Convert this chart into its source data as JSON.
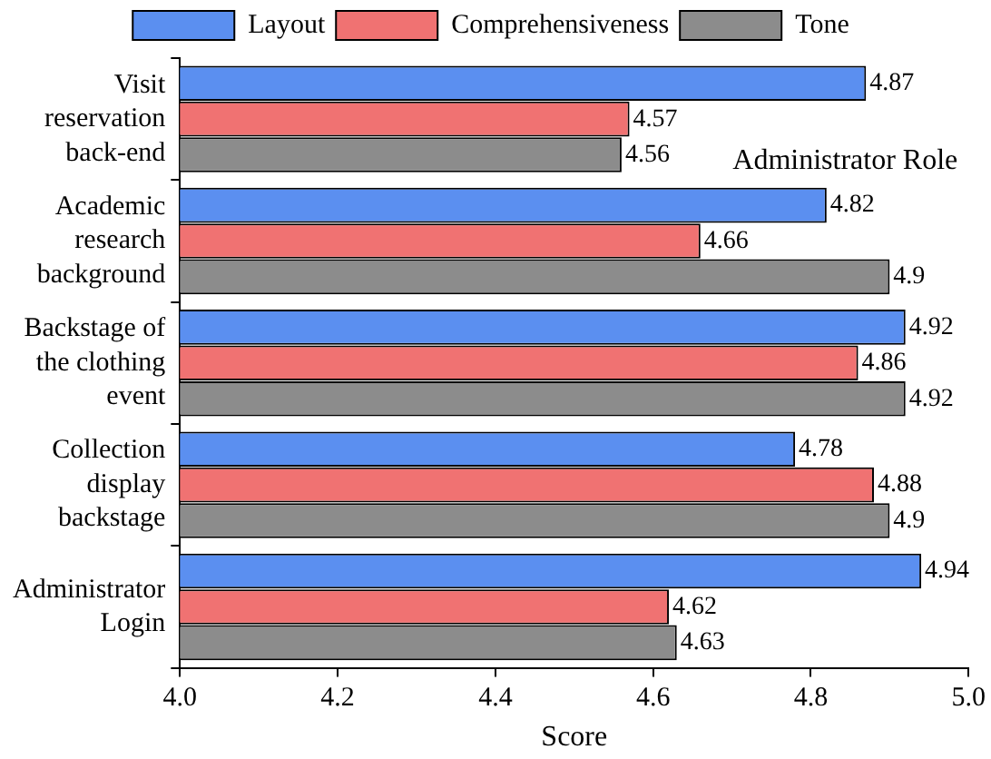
{
  "chart_data": {
    "type": "bar",
    "orientation": "horizontal",
    "xlabel": "Score",
    "categories": [
      "Visit reservation back-end",
      "Academic research background",
      "Backstage of the clothing event",
      "Collection display backstage",
      "Administrator Login"
    ],
    "series": [
      {
        "name": "Layout",
        "color": "#5b8ff0",
        "values": [
          4.87,
          4.82,
          4.92,
          4.78,
          4.94
        ]
      },
      {
        "name": "Comprehensiveness",
        "color": "#f07272",
        "values": [
          4.57,
          4.66,
          4.86,
          4.88,
          4.62
        ]
      },
      {
        "name": "Tone",
        "color": "#8c8c8c",
        "values": [
          4.56,
          4.9,
          4.92,
          4.9,
          4.63
        ]
      }
    ],
    "xlim": [
      4.0,
      5.0
    ],
    "xticks": [
      {
        "value": 4.0,
        "label": "4.0"
      },
      4.2,
      4.4,
      4.6,
      4.8,
      {
        "value": 5.0,
        "label": "5.0"
      }
    ],
    "data_labels": true,
    "legend": "top",
    "grid": false,
    "annotations": [
      "Administrator Role"
    ]
  }
}
